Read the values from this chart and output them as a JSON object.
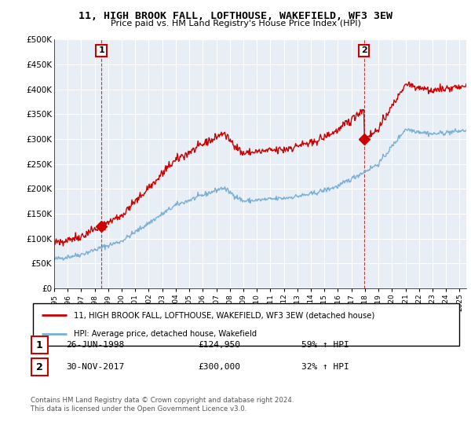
{
  "title": "11, HIGH BROOK FALL, LOFTHOUSE, WAKEFIELD, WF3 3EW",
  "subtitle": "Price paid vs. HM Land Registry's House Price Index (HPI)",
  "legend_line1": "11, HIGH BROOK FALL, LOFTHOUSE, WAKEFIELD, WF3 3EW (detached house)",
  "legend_line2": "HPI: Average price, detached house, Wakefield",
  "transaction1_label": "1",
  "transaction1_date": "26-JUN-1998",
  "transaction1_price": "£124,950",
  "transaction1_hpi": "59% ↑ HPI",
  "transaction2_label": "2",
  "transaction2_date": "30-NOV-2017",
  "transaction2_price": "£300,000",
  "transaction2_hpi": "32% ↑ HPI",
  "footer": "Contains HM Land Registry data © Crown copyright and database right 2024.\nThis data is licensed under the Open Government Licence v3.0.",
  "hpi_color": "#7bafd4",
  "price_color": "#cc0000",
  "marker_color": "#cc0000",
  "chart_bg": "#e8eef5",
  "ylim": [
    0,
    500000
  ],
  "yticks": [
    0,
    50000,
    100000,
    150000,
    200000,
    250000,
    300000,
    350000,
    400000,
    450000,
    500000
  ],
  "ytick_labels": [
    "£0",
    "£50K",
    "£100K",
    "£150K",
    "£200K",
    "£250K",
    "£300K",
    "£350K",
    "£400K",
    "£450K",
    "£500K"
  ],
  "xlim_start": 1995.0,
  "xlim_end": 2025.5,
  "transaction1_x": 1998.49,
  "transaction1_y": 124950,
  "transaction2_x": 2017.92,
  "transaction2_y": 300000
}
